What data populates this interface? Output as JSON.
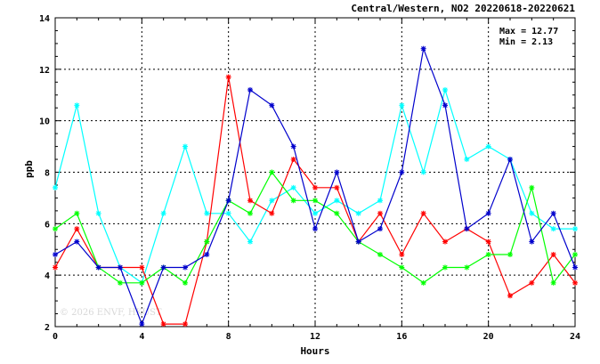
{
  "chart_data": {
    "type": "line",
    "title": "Central/Western, NO2 20220618-20220621",
    "xlabel": "Hours",
    "ylabel": "ppb",
    "xlim": [
      0,
      24
    ],
    "ylim": [
      2,
      14
    ],
    "xticks": [
      0,
      4,
      8,
      12,
      16,
      20,
      24
    ],
    "yticks": [
      2,
      4,
      6,
      8,
      10,
      12,
      14
    ],
    "grid": true,
    "max_label": "Max = 12.77",
    "min_label": "Min =  2.13",
    "watermark": "© 2026 ENVF, HKUST",
    "x": [
      0,
      1,
      2,
      3,
      4,
      5,
      6,
      7,
      8,
      9,
      10,
      11,
      12,
      13,
      14,
      15,
      16,
      17,
      18,
      19,
      20,
      21,
      22,
      23,
      24
    ],
    "series": [
      {
        "color": "#00ffff",
        "values": [
          7.4,
          10.6,
          6.4,
          4.3,
          3.7,
          6.4,
          9.0,
          6.4,
          6.4,
          5.3,
          6.9,
          7.4,
          6.4,
          6.9,
          6.4,
          6.9,
          10.6,
          8.0,
          11.2,
          8.5,
          9.0,
          8.5,
          6.4,
          5.8,
          5.8
        ]
      },
      {
        "color": "#ff0000",
        "values": [
          4.3,
          5.8,
          4.3,
          4.3,
          4.3,
          2.1,
          2.1,
          5.3,
          11.7,
          6.9,
          6.4,
          8.5,
          7.4,
          7.4,
          5.3,
          6.4,
          4.8,
          6.4,
          5.3,
          5.8,
          5.3,
          3.2,
          3.7,
          4.8,
          3.7
        ]
      },
      {
        "color": "#00ff00",
        "values": [
          5.8,
          6.4,
          4.3,
          3.7,
          3.7,
          4.3,
          3.7,
          5.3,
          6.9,
          6.4,
          8.0,
          6.9,
          6.9,
          6.4,
          5.3,
          4.8,
          4.3,
          3.7,
          4.3,
          4.3,
          4.8,
          4.8,
          7.4,
          3.7,
          4.8
        ]
      },
      {
        "color": "#0000cc",
        "values": [
          4.8,
          5.3,
          4.3,
          4.3,
          2.1,
          4.3,
          4.3,
          4.8,
          6.9,
          11.2,
          10.6,
          9.0,
          5.8,
          8.0,
          5.3,
          5.8,
          8.0,
          12.8,
          10.6,
          5.8,
          6.4,
          8.5,
          5.3,
          6.4,
          4.3
        ]
      }
    ]
  }
}
